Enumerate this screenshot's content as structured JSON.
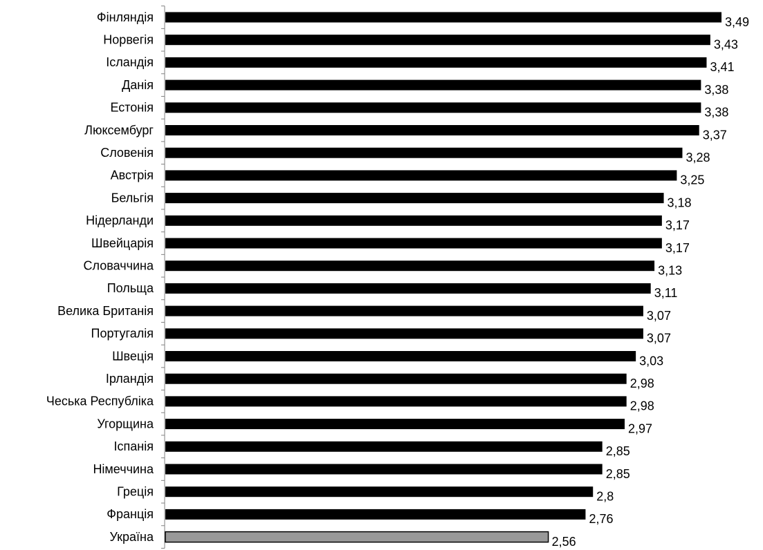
{
  "chart_data": {
    "type": "bar",
    "orientation": "horizontal",
    "categories": [
      "Фінляндія",
      "Норвегія",
      "Ісландія",
      "Данія",
      "Естонія",
      "Люксембург",
      "Словенія",
      "Австрія",
      "Бельгія",
      "Нідерланди",
      "Швейцарія",
      "Словаччина",
      "Польща",
      "Велика Британія",
      "Португалія",
      "Швеція",
      "Ірландія",
      "Чеська Республіка",
      "Угорщина",
      "Іспанія",
      "Німеччина",
      "Греція",
      "Франція",
      "Україна"
    ],
    "values": [
      3.49,
      3.43,
      3.41,
      3.38,
      3.38,
      3.37,
      3.28,
      3.25,
      3.18,
      3.17,
      3.17,
      3.13,
      3.11,
      3.07,
      3.07,
      3.03,
      2.98,
      2.98,
      2.97,
      2.85,
      2.85,
      2.8,
      2.76,
      2.56
    ],
    "value_labels": [
      "3,49",
      "3,43",
      "3,41",
      "3,38",
      "3,38",
      "3,37",
      "3,28",
      "3,25",
      "3,18",
      "3,17",
      "3,17",
      "3,13",
      "3,11",
      "3,07",
      "3,07",
      "3,03",
      "2,98",
      "2,98",
      "2,97",
      "2,85",
      "2,85",
      "2,8",
      "2,76",
      "2,56"
    ],
    "title": "",
    "xlabel": "",
    "ylabel": "",
    "xlim": [
      0.5,
      3.5
    ],
    "grid": false,
    "legend": "none",
    "colors": {
      "bar": "#000000",
      "highlight_bar": "#999999",
      "highlight_outline": "#000000",
      "axis": "#808080"
    },
    "highlight_category": "Україна"
  }
}
